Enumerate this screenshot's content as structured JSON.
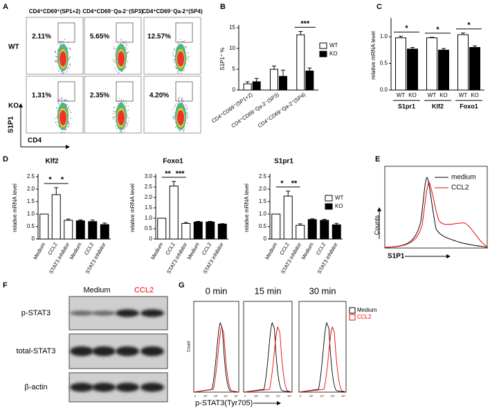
{
  "panel_labels": [
    "A",
    "B",
    "C",
    "D",
    "E",
    "F",
    "G"
  ],
  "panel_a": {
    "columns": [
      "CD4⁺CD69⁺(SP1+2)",
      "CD4⁺CD69⁻Qa-2⁻(SP3)",
      "CD4⁺CD69⁻Qa-2⁺(SP4)"
    ],
    "rows": [
      "WT",
      "KO"
    ],
    "percentages": [
      [
        "2.11%",
        "5.65%",
        "12.57%"
      ],
      [
        "1.31%",
        "2.35%",
        "4.20%"
      ]
    ],
    "y_label": "S1P1",
    "x_label": "CD4"
  },
  "chart_data": [
    {
      "type": "bar",
      "ylabel": "S1P1⁺ %",
      "categories": [
        "CD4⁺CD69⁺(SP1+2)",
        "CD4⁺CD69⁻Qa-2⁻(SP3)",
        "CD4⁺CD69⁻Qa-2⁺(SP4)"
      ],
      "series": [
        {
          "name": "WT",
          "color": "#ffffff",
          "values": [
            1.5,
            5.0,
            13.3
          ],
          "errors": [
            0.5,
            0.8,
            0.8
          ]
        },
        {
          "name": "KO",
          "color": "#000000",
          "values": [
            2.0,
            3.3,
            4.6
          ],
          "errors": [
            0.8,
            1.5,
            0.7
          ]
        }
      ],
      "ylim": [
        0,
        15
      ],
      "yticks": [
        0,
        5,
        10,
        15
      ],
      "annotations": [
        "***"
      ],
      "legend": "upper right"
    },
    {
      "type": "bar",
      "ylabel": "relative mRNA level",
      "categories": [
        "S1pr1",
        "Klf2",
        "Foxo1"
      ],
      "series": [
        {
          "name": "WT",
          "color": "#ffffff",
          "values": [
            0.98,
            0.98,
            1.04
          ],
          "errors": [
            0.03,
            0.01,
            0.03
          ]
        },
        {
          "name": "KO",
          "color": "#000000",
          "values": [
            0.77,
            0.75,
            0.8
          ],
          "errors": [
            0.03,
            0.03,
            0.03
          ]
        }
      ],
      "ylim": [
        0,
        1.3
      ],
      "yticks": [
        {
          "value": 0,
          "label": "0.0"
        },
        0.5,
        {
          "value": 1,
          "label": "1.0"
        }
      ],
      "annotations": [
        "*",
        "*",
        "*"
      ]
    },
    {
      "type": "bar",
      "title": "Klf2",
      "ylabel": "relative mRNA level",
      "categories": [
        "Medium",
        "CCL2",
        "STAT3 inhibitor",
        "Medium",
        "CCL2",
        "STAT3 inhibitor"
      ],
      "series": [
        {
          "name": "WT",
          "color": "#ffffff",
          "values": [
            1.0,
            1.78,
            0.75,
            null,
            null,
            null
          ],
          "errors": [
            null,
            0.28,
            0.05,
            null,
            null,
            null
          ]
        },
        {
          "name": "KO",
          "color": "#000000",
          "values": [
            null,
            null,
            null,
            0.73,
            0.7,
            0.58
          ],
          "errors": [
            null,
            null,
            null,
            0.04,
            0.06,
            0.06
          ]
        }
      ],
      "ylim": [
        0,
        2.5
      ],
      "yticks": [
        0,
        0.5,
        {
          "value": 1,
          "label": "1.0"
        },
        1.5,
        {
          "value": 2,
          "label": "2.0"
        },
        2.5
      ],
      "annotations": [
        "*",
        "*"
      ]
    },
    {
      "type": "bar",
      "title": "Foxo1",
      "ylabel": "relative mRNA level",
      "categories": [
        "Medium",
        "CCL2",
        "STAT3 inhibitor",
        "Medium",
        "CCL2",
        "STAT3 inhibitor"
      ],
      "series": [
        {
          "name": "WT",
          "color": "#ffffff",
          "values": [
            1.0,
            2.55,
            0.75,
            null,
            null,
            null
          ],
          "errors": [
            null,
            0.22,
            0.05,
            null,
            null,
            null
          ]
        },
        {
          "name": "KO",
          "color": "#000000",
          "values": [
            null,
            null,
            null,
            0.82,
            0.82,
            0.72
          ],
          "errors": [
            null,
            null,
            null,
            0.03,
            0.03,
            0.02
          ]
        }
      ],
      "ylim": [
        0,
        3
      ],
      "yticks": [
        0,
        0.5,
        {
          "value": 1,
          "label": "1.0"
        },
        1.5,
        {
          "value": 2,
          "label": "2.0"
        },
        2.5,
        {
          "value": 3,
          "label": "3.0"
        }
      ],
      "annotations": [
        "**",
        "***"
      ]
    },
    {
      "type": "bar",
      "title": "S1pr1",
      "ylabel": "relative mRNA level",
      "categories": [
        "Medium",
        "CCL2",
        "STAT3 inhibitor",
        "Medium",
        "CCL2",
        "STAT3 inhibitor"
      ],
      "series": [
        {
          "name": "WT",
          "color": "#ffffff",
          "values": [
            1.0,
            1.72,
            0.55,
            null,
            null,
            null
          ],
          "errors": [
            null,
            0.2,
            0.06,
            null,
            null,
            null
          ]
        },
        {
          "name": "KO",
          "color": "#000000",
          "values": [
            null,
            null,
            null,
            0.78,
            0.75,
            0.57
          ],
          "errors": [
            null,
            null,
            null,
            0.03,
            0.04,
            0.06
          ]
        }
      ],
      "ylim": [
        0,
        2.5
      ],
      "yticks": [
        0,
        0.5,
        {
          "value": 1,
          "label": "1.0"
        },
        1.5,
        {
          "value": 2,
          "label": "2.0"
        },
        2.5
      ],
      "annotations": [
        "*",
        "**"
      ],
      "legend": "upper right"
    }
  ],
  "panel_e": {
    "legend": [
      "medium",
      "CCL2"
    ],
    "y_label": "Counts",
    "x_label": "S1P1"
  },
  "panel_f": {
    "columns": [
      "Medium",
      "CCL2"
    ],
    "rows": [
      "p-STAT3",
      "total-STAT3",
      "β-actin"
    ]
  },
  "panel_g": {
    "titles": [
      "0 min",
      "15 min",
      "30 min"
    ],
    "legend": [
      "Medium",
      "CCL2"
    ],
    "y_label": "Count",
    "x_label": "p-STAT3(Tyr705)",
    "xticks": [
      "0",
      "10²",
      "10³",
      "10⁴",
      "10⁵"
    ]
  }
}
